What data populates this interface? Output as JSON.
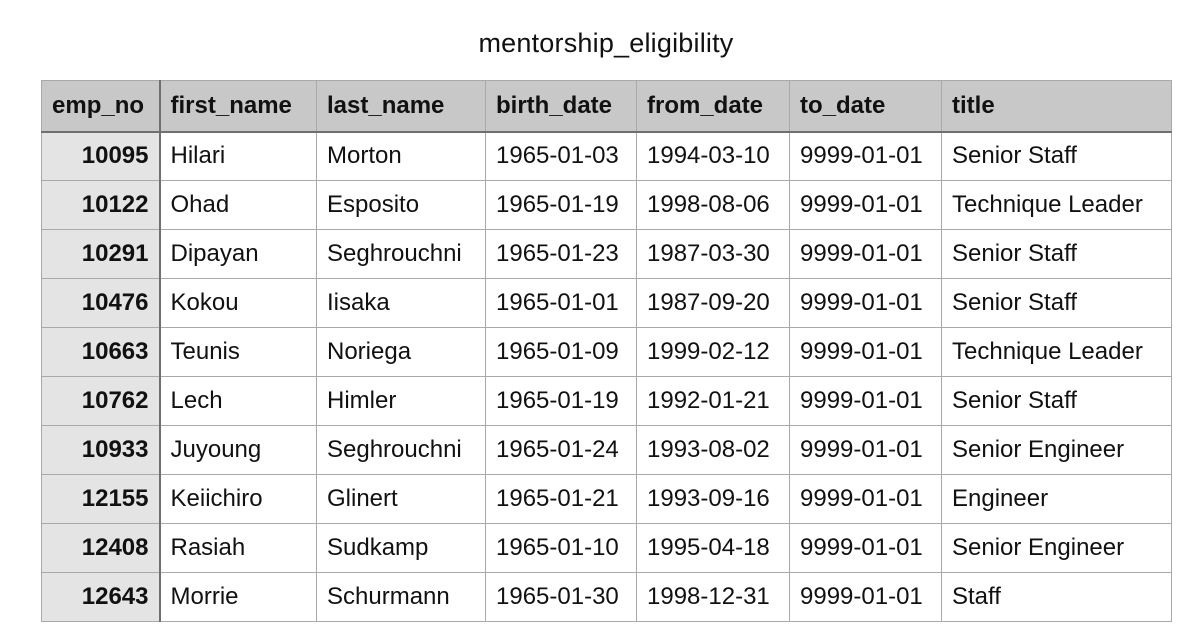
{
  "sheet": {
    "title": "mentorship_eligibility"
  },
  "table": {
    "columns": [
      "emp_no",
      "first_name",
      "last_name",
      "birth_date",
      "from_date",
      "to_date",
      "title"
    ],
    "rows": [
      [
        "10095",
        "Hilari",
        "Morton",
        "1965-01-03",
        "1994-03-10",
        "9999-01-01",
        "Senior Staff"
      ],
      [
        "10122",
        "Ohad",
        "Esposito",
        "1965-01-19",
        "1998-08-06",
        "9999-01-01",
        "Technique Leader"
      ],
      [
        "10291",
        "Dipayan",
        "Seghrouchni",
        "1965-01-23",
        "1987-03-30",
        "9999-01-01",
        "Senior Staff"
      ],
      [
        "10476",
        "Kokou",
        "Iisaka",
        "1965-01-01",
        "1987-09-20",
        "9999-01-01",
        "Senior Staff"
      ],
      [
        "10663",
        "Teunis",
        "Noriega",
        "1965-01-09",
        "1999-02-12",
        "9999-01-01",
        "Technique Leader"
      ],
      [
        "10762",
        "Lech",
        "Himler",
        "1965-01-19",
        "1992-01-21",
        "9999-01-01",
        "Senior Staff"
      ],
      [
        "10933",
        "Juyoung",
        "Seghrouchni",
        "1965-01-24",
        "1993-08-02",
        "9999-01-01",
        "Senior Engineer"
      ],
      [
        "12155",
        "Keiichiro",
        "Glinert",
        "1965-01-21",
        "1993-09-16",
        "9999-01-01",
        "Engineer"
      ],
      [
        "12408",
        "Rasiah",
        "Sudkamp",
        "1965-01-10",
        "1995-04-18",
        "9999-01-01",
        "Senior Engineer"
      ],
      [
        "12643",
        "Morrie",
        "Schurmann",
        "1965-01-30",
        "1998-12-31",
        "9999-01-01",
        "Staff"
      ]
    ]
  }
}
